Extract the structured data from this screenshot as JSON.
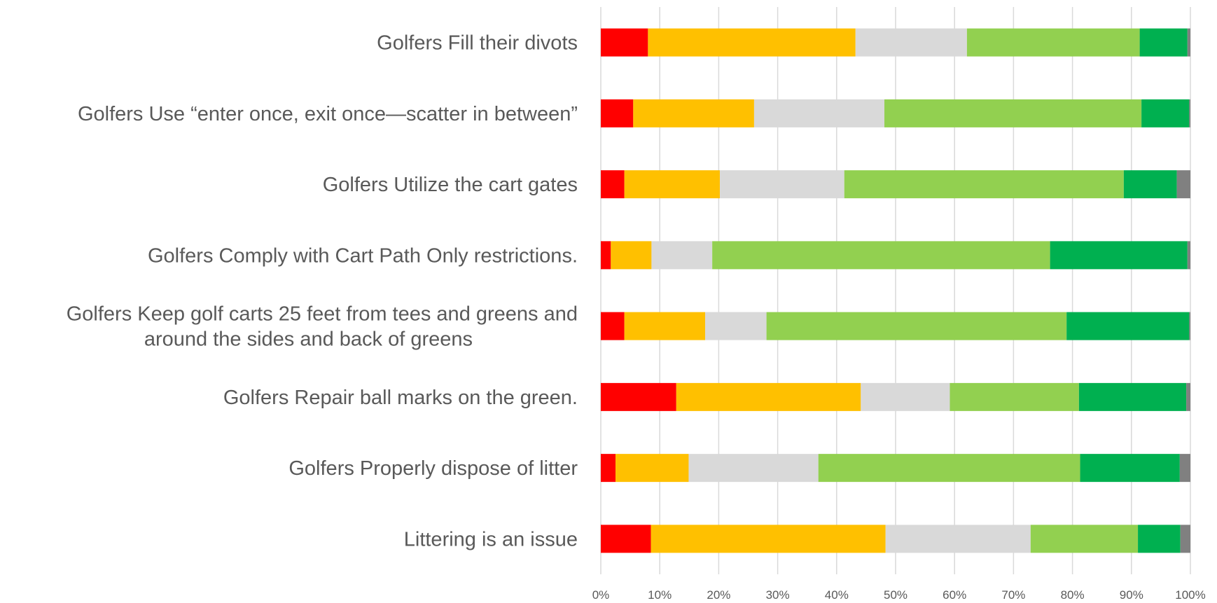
{
  "chart_data": {
    "type": "bar",
    "orientation": "horizontal",
    "stacked": "percent",
    "title": "",
    "xlabel": "",
    "ylabel": "",
    "xlim": [
      0,
      100
    ],
    "x_ticks": [
      "0%",
      "10%",
      "20%",
      "30%",
      "40%",
      "50%",
      "60%",
      "70%",
      "80%",
      "90%",
      "100%"
    ],
    "grid": true,
    "legend": "none",
    "categories": [
      [
        "Golfers Fill their divots"
      ],
      [
        "Golfers Use “enter once, exit once—scatter in between”"
      ],
      [
        "Golfers Utilize the cart gates"
      ],
      [
        "Golfers Comply with Cart Path Only restrictions."
      ],
      [
        "Golfers Keep golf carts 25 feet from tees and greens and",
        "around the sides and back of greens"
      ],
      [
        "Golfers Repair ball marks on the green."
      ],
      [
        "Golfers Properly dispose of litter"
      ],
      [
        "Littering is an issue"
      ]
    ],
    "series": [
      {
        "color": "#ff0000",
        "values": [
          8.0,
          5.5,
          4.0,
          1.7,
          4.0,
          12.8,
          2.5,
          8.5
        ]
      },
      {
        "color": "#ffc000",
        "values": [
          35.2,
          20.5,
          16.2,
          6.9,
          13.7,
          31.3,
          12.4,
          39.8
        ]
      },
      {
        "color": "#d9d9d9",
        "values": [
          18.9,
          22.1,
          21.1,
          10.3,
          10.4,
          15.1,
          22.0,
          24.6
        ]
      },
      {
        "color": "#92d050",
        "values": [
          29.3,
          43.6,
          47.4,
          57.3,
          50.9,
          21.9,
          44.4,
          18.2
        ]
      },
      {
        "color": "#00b050",
        "values": [
          8.1,
          8.1,
          9.0,
          23.3,
          20.8,
          18.2,
          16.9,
          7.2
        ]
      },
      {
        "color": "#808080",
        "values": [
          0.5,
          0.2,
          2.3,
          0.5,
          0.2,
          0.7,
          1.8,
          1.7
        ]
      }
    ]
  }
}
